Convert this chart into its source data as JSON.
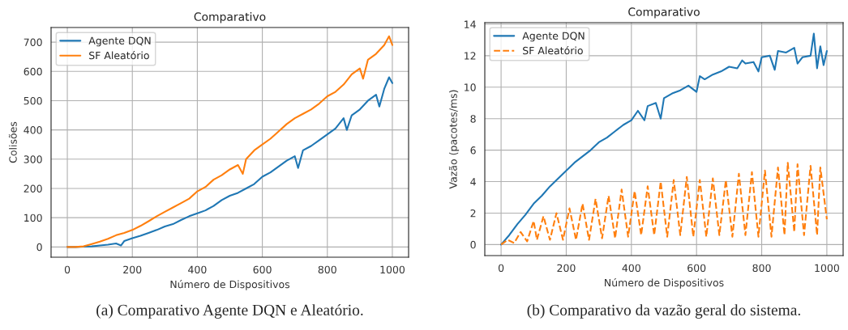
{
  "chart_data": [
    {
      "type": "line",
      "title": "Comparativo",
      "xlabel": "Número de Dispositivos",
      "ylabel": "Colisões",
      "xlim": [
        -50,
        1050
      ],
      "xticks": [
        0,
        200,
        400,
        600,
        800,
        1000
      ],
      "ylim": [
        -35,
        750
      ],
      "yticks": [
        0,
        100,
        200,
        300,
        400,
        500,
        600,
        700
      ],
      "grid": true,
      "legend": "top left",
      "line_style": "solid",
      "annotations": [
        "(a) Comparativo Agente DQN e Aleatório."
      ],
      "series": [
        {
          "name": "Agente DQN",
          "color": "#1f77b4",
          "x": [
            0,
            25,
            50,
            75,
            100,
            125,
            150,
            165,
            175,
            200,
            225,
            250,
            275,
            300,
            325,
            350,
            375,
            400,
            425,
            450,
            475,
            500,
            525,
            550,
            575,
            600,
            625,
            650,
            675,
            700,
            710,
            725,
            750,
            775,
            800,
            825,
            850,
            860,
            875,
            900,
            925,
            950,
            960,
            975,
            990,
            1000
          ],
          "values": [
            0,
            0,
            1,
            2,
            5,
            8,
            12,
            5,
            20,
            30,
            38,
            48,
            58,
            70,
            78,
            92,
            105,
            115,
            125,
            140,
            160,
            175,
            185,
            200,
            215,
            240,
            255,
            275,
            295,
            310,
            270,
            330,
            345,
            365,
            385,
            405,
            440,
            400,
            450,
            470,
            500,
            520,
            480,
            540,
            580,
            560
          ]
        },
        {
          "name": "SF Aleatório",
          "color": "#ff7f0e",
          "x": [
            0,
            25,
            50,
            75,
            100,
            125,
            150,
            175,
            200,
            225,
            250,
            275,
            300,
            325,
            350,
            375,
            400,
            425,
            450,
            475,
            500,
            525,
            540,
            550,
            575,
            600,
            625,
            650,
            675,
            700,
            725,
            750,
            775,
            800,
            825,
            850,
            875,
            900,
            910,
            925,
            950,
            975,
            990,
            1000
          ],
          "values": [
            0,
            0,
            2,
            10,
            18,
            28,
            40,
            48,
            58,
            72,
            88,
            105,
            120,
            135,
            150,
            165,
            190,
            205,
            230,
            245,
            265,
            280,
            250,
            300,
            330,
            350,
            370,
            395,
            420,
            440,
            455,
            470,
            490,
            515,
            530,
            555,
            590,
            610,
            575,
            640,
            660,
            690,
            720,
            690
          ]
        }
      ]
    },
    {
      "type": "line",
      "title": "Comparativo",
      "xlabel": "Número de Dispositivos",
      "ylabel": "Vazão (pacotes/ms)",
      "xlim": [
        -50,
        1050
      ],
      "xticks": [
        0,
        200,
        400,
        600,
        800,
        1000
      ],
      "ylim": [
        -0.7,
        14.1
      ],
      "yticks": [
        0,
        2,
        4,
        6,
        8,
        10,
        12,
        14
      ],
      "grid": true,
      "legend": "top left",
      "annotations": [
        "(b) Comparativo da vazão geral do sistema."
      ],
      "series": [
        {
          "name": "Agente DQN",
          "color": "#1f77b4",
          "line_style": "solid",
          "x": [
            0,
            25,
            50,
            75,
            100,
            125,
            150,
            175,
            200,
            225,
            250,
            275,
            300,
            325,
            350,
            375,
            400,
            420,
            440,
            450,
            475,
            490,
            500,
            525,
            550,
            575,
            600,
            610,
            625,
            650,
            675,
            700,
            725,
            740,
            750,
            775,
            790,
            800,
            825,
            840,
            850,
            875,
            900,
            910,
            925,
            950,
            960,
            970,
            980,
            990,
            1000
          ],
          "values": [
            0,
            0.6,
            1.3,
            1.9,
            2.6,
            3.1,
            3.7,
            4.2,
            4.7,
            5.2,
            5.6,
            6.0,
            6.5,
            6.8,
            7.2,
            7.6,
            7.9,
            8.5,
            7.9,
            8.8,
            9.0,
            8.0,
            9.3,
            9.6,
            9.8,
            10.1,
            9.7,
            10.7,
            10.5,
            10.8,
            11.0,
            11.3,
            11.2,
            11.7,
            11.5,
            11.6,
            11.0,
            11.9,
            12.0,
            11.1,
            12.3,
            12.2,
            12.5,
            11.5,
            11.9,
            12.0,
            13.4,
            11.2,
            12.6,
            11.4,
            12.3
          ]
        },
        {
          "name": "SF Aleatório",
          "color": "#ff7f0e",
          "line_style": "dashed",
          "x": [
            0,
            20,
            40,
            60,
            80,
            100,
            110,
            130,
            150,
            170,
            190,
            210,
            230,
            250,
            270,
            290,
            310,
            330,
            350,
            370,
            390,
            410,
            430,
            450,
            470,
            490,
            510,
            530,
            550,
            570,
            590,
            610,
            630,
            650,
            670,
            690,
            710,
            730,
            750,
            770,
            790,
            810,
            830,
            850,
            870,
            880,
            900,
            910,
            930,
            950,
            970,
            980,
            1000
          ],
          "values": [
            0,
            0.3,
            0.1,
            0.8,
            0.2,
            1.5,
            0.3,
            1.8,
            0.3,
            2.0,
            0.3,
            2.3,
            0.3,
            2.6,
            0.3,
            2.9,
            0.4,
            3.1,
            0.4,
            3.5,
            0.5,
            3.4,
            0.6,
            3.7,
            0.6,
            4.0,
            0.5,
            4.1,
            0.6,
            4.3,
            0.5,
            4.1,
            0.5,
            4.2,
            0.6,
            4.1,
            0.5,
            4.5,
            0.6,
            4.6,
            0.5,
            4.7,
            0.5,
            4.9,
            0.6,
            5.2,
            0.8,
            5.1,
            0.6,
            5.0,
            0.6,
            4.9,
            1.6
          ]
        }
      ]
    }
  ]
}
